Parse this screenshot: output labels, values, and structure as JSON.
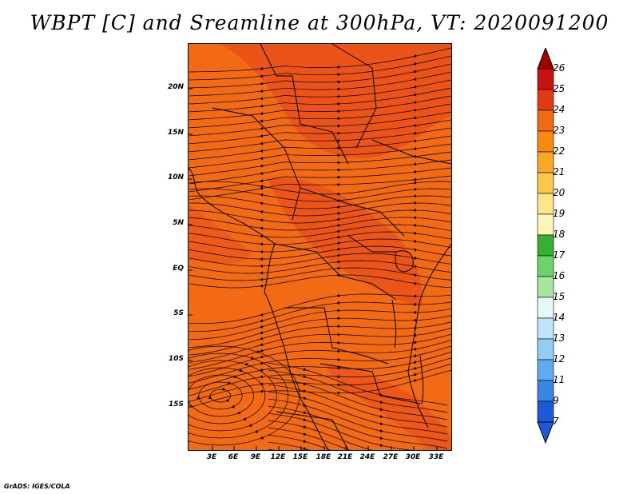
{
  "title": "WBPT [C] and Sreamline at 300hPa, VT: 2020091200",
  "footer": "GrADS: IGES/COLA",
  "map": {
    "lat_labels": [
      "20N",
      "15N",
      "10N",
      "5N",
      "EQ",
      "5S",
      "10S",
      "15S"
    ],
    "lon_labels": [
      "3E",
      "6E",
      "9E",
      "12E",
      "15E",
      "18E",
      "21E",
      "24E",
      "27E",
      "30E",
      "33E"
    ],
    "background_color": "#f36a14",
    "warm_band_color": "#e8471a"
  },
  "colorbar": {
    "labels": [
      "26",
      "25",
      "24",
      "23",
      "22",
      "21",
      "20",
      "19",
      "18",
      "17",
      "16",
      "15",
      "14",
      "13",
      "12",
      "11",
      "9",
      "7"
    ],
    "colors": [
      "#a50000",
      "#c81212",
      "#e23a14",
      "#f36a14",
      "#f88a10",
      "#f9a825",
      "#fbc94a",
      "#fde58a",
      "#fff5b8",
      "#36b030",
      "#6cd26a",
      "#a8e6a0",
      "#e6f8f4",
      "#c2e4fa",
      "#94ccf4",
      "#62aaee",
      "#3a86e6",
      "#1e5ad8",
      "#1e5ad8"
    ]
  }
}
